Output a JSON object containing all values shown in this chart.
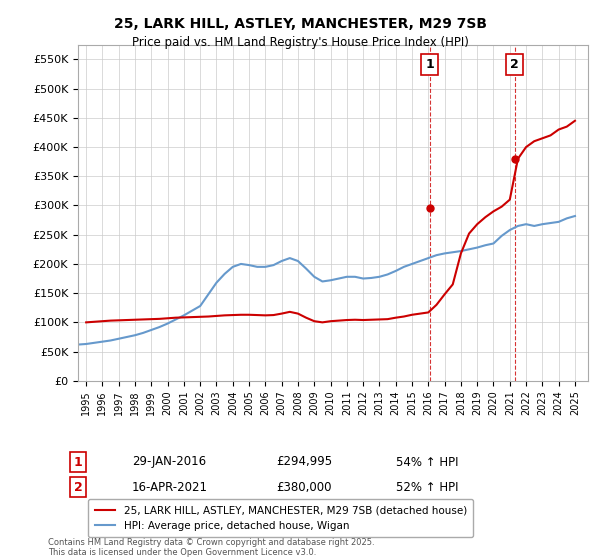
{
  "title": "25, LARK HILL, ASTLEY, MANCHESTER, M29 7SB",
  "subtitle": "Price paid vs. HM Land Registry's House Price Index (HPI)",
  "legend_line1": "25, LARK HILL, ASTLEY, MANCHESTER, M29 7SB (detached house)",
  "legend_line2": "HPI: Average price, detached house, Wigan",
  "footnote": "Contains HM Land Registry data © Crown copyright and database right 2025.\nThis data is licensed under the Open Government Licence v3.0.",
  "annotation1_label": "1",
  "annotation1_date": "29-JAN-2016",
  "annotation1_price": "£294,995",
  "annotation1_hpi": "54% ↑ HPI",
  "annotation2_label": "2",
  "annotation2_date": "16-APR-2021",
  "annotation2_price": "£380,000",
  "annotation2_hpi": "52% ↑ HPI",
  "red_color": "#cc0000",
  "blue_color": "#6699cc",
  "dashed_red": "#cc0000",
  "ylim": [
    0,
    575000
  ],
  "yticks": [
    0,
    50000,
    100000,
    150000,
    200000,
    250000,
    300000,
    350000,
    400000,
    450000,
    500000,
    550000
  ],
  "vline1_x": 2016.08,
  "vline2_x": 2021.29,
  "point1_x": 2016.08,
  "point1_y": 294995,
  "point2_x": 2021.29,
  "point2_y": 380000,
  "xlim": [
    1994.5,
    2025.8
  ],
  "xticks": [
    1995,
    1996,
    1997,
    1998,
    1999,
    2000,
    2001,
    2002,
    2003,
    2004,
    2005,
    2006,
    2007,
    2008,
    2009,
    2010,
    2011,
    2012,
    2013,
    2014,
    2015,
    2016,
    2017,
    2018,
    2019,
    2020,
    2021,
    2022,
    2023,
    2024,
    2025
  ],
  "hpi_x": [
    1994.5,
    1995,
    1995.5,
    1996,
    1996.5,
    1997,
    1997.5,
    1998,
    1998.5,
    1999,
    1999.5,
    2000,
    2000.5,
    2001,
    2001.5,
    2002,
    2002.5,
    2003,
    2003.5,
    2004,
    2004.5,
    2005,
    2005.5,
    2006,
    2006.5,
    2007,
    2007.5,
    2008,
    2008.5,
    2009,
    2009.5,
    2010,
    2010.5,
    2011,
    2011.5,
    2012,
    2012.5,
    2013,
    2013.5,
    2014,
    2014.5,
    2015,
    2015.5,
    2016,
    2016.5,
    2017,
    2017.5,
    2018,
    2018.5,
    2019,
    2019.5,
    2020,
    2020.5,
    2021,
    2021.5,
    2022,
    2022.5,
    2023,
    2023.5,
    2024,
    2024.5,
    2025
  ],
  "hpi_y": [
    62000,
    63000,
    65000,
    67000,
    69000,
    72000,
    75000,
    78000,
    82000,
    87000,
    92000,
    98000,
    105000,
    112000,
    120000,
    128000,
    148000,
    168000,
    183000,
    195000,
    200000,
    198000,
    195000,
    195000,
    198000,
    205000,
    210000,
    205000,
    192000,
    178000,
    170000,
    172000,
    175000,
    178000,
    178000,
    175000,
    176000,
    178000,
    182000,
    188000,
    195000,
    200000,
    205000,
    210000,
    215000,
    218000,
    220000,
    222000,
    225000,
    228000,
    232000,
    235000,
    248000,
    258000,
    265000,
    268000,
    265000,
    268000,
    270000,
    272000,
    278000,
    282000
  ],
  "red_x": [
    1995,
    1995.5,
    1996,
    1996.5,
    1997,
    1997.5,
    1998,
    1998.5,
    1999,
    1999.5,
    2000,
    2000.5,
    2001,
    2001.5,
    2002,
    2002.5,
    2003,
    2003.5,
    2004,
    2004.5,
    2005,
    2005.5,
    2006,
    2006.5,
    2007,
    2007.5,
    2008,
    2008.5,
    2009,
    2009.5,
    2010,
    2010.5,
    2011,
    2011.5,
    2012,
    2012.5,
    2013,
    2013.5,
    2014,
    2014.5,
    2015,
    2015.5,
    2016,
    2016.5,
    2017,
    2017.5,
    2018,
    2018.5,
    2019,
    2019.5,
    2020,
    2020.5,
    2021,
    2021.5,
    2022,
    2022.5,
    2023,
    2023.5,
    2024,
    2024.5,
    2025
  ],
  "red_y": [
    100000,
    101000,
    102000,
    103000,
    103500,
    104000,
    104500,
    105000,
    105500,
    106000,
    107000,
    108000,
    108500,
    109000,
    109500,
    110000,
    111000,
    112000,
    112500,
    113000,
    113000,
    112500,
    112000,
    112500,
    115000,
    118000,
    115000,
    108000,
    102000,
    100000,
    102000,
    103000,
    104000,
    104500,
    104000,
    104500,
    105000,
    105500,
    108000,
    110000,
    113000,
    115000,
    117000,
    130000,
    148000,
    165000,
    218000,
    252000,
    268000,
    280000,
    290000,
    298000,
    310000,
    380000,
    400000,
    410000,
    415000,
    420000,
    430000,
    435000,
    445000
  ]
}
